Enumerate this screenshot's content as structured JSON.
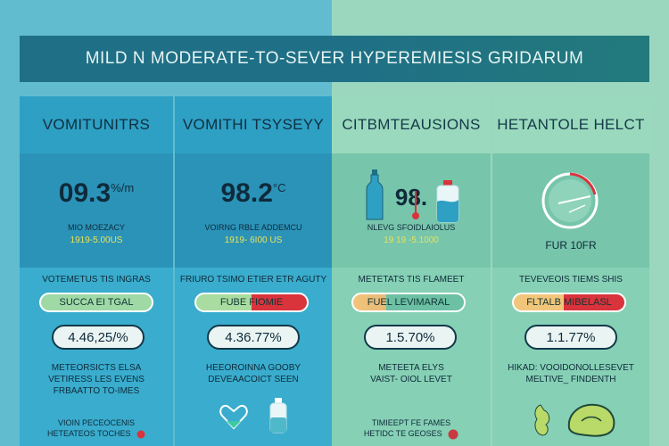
{
  "title": "MILD N MODERATE-TO-SEVER HYPEREMIESIS GRIDARUM",
  "columns": [
    {
      "heading": "VOMITUNITRS",
      "value": "09.3",
      "value_unit": "%/m",
      "small1": "MIO MOEZACY",
      "small2": "1919-5.00US",
      "sub": "VOTEMETUS TIS INGRAS",
      "pill": "SUCCA EI TGAL",
      "pct": "4.46,25/%",
      "note": [
        "METEORSICTS ELSA",
        "VETIRESS LES EVENS",
        "FRBAATTO TO-IMES"
      ],
      "foot": [
        "VIOIN  PECEOCENIS",
        "HETEATEOS TOCHES"
      ]
    },
    {
      "heading": "VOMITHI TSYSEYY",
      "value": "98.2",
      "value_unit": "°C",
      "small1": "VOIRNG RBLE ADDEMCU",
      "small2": "1919- 6I00 US",
      "sub": "FRIURO TSIMO ETIER ETR AGUTY",
      "pill": "FUBE FIOMIE",
      "pct": "4.36.77%",
      "note": [
        "HEEOROINNA GOOBY",
        "DEVEAACOICT SEEN"
      ],
      "foot": []
    },
    {
      "heading": "CITBMTEAUSIONS",
      "value": "98.",
      "value_unit": "",
      "small1": "NLEVG SFOIDLAIOLUS",
      "small2": "19 19 -5.1000",
      "sub": "METETATS TIS FLAMEET",
      "pill": "FUEL LEVIMARAL",
      "pct": "1.5.70%",
      "note": [
        "METEETA ELYS",
        "VAIST- OIOL LEVET"
      ],
      "foot": [
        "TIMIEEPT FE FAMES",
        "HETIDC TE GEOSES"
      ]
    },
    {
      "heading": "HETANTOLE HELCT",
      "value": "",
      "value_unit": "",
      "small1": "FUR 10FR",
      "small2": "",
      "sub": "TEVEVEOIS TIEMS SHIS",
      "pill": "FLTALB MIBELASL",
      "pct": "1.1.77%",
      "note": [
        "HIKAD: VOOIDONOLLESEVET",
        "MELTIVE_ FINDENTH"
      ],
      "foot": []
    }
  ],
  "colors": {
    "title_bg": "#1f6f86",
    "blue_col": "#33a6c9",
    "green_col": "#84cfb0",
    "accent_red": "#d9343c",
    "accent_yellow": "#e7e35a"
  }
}
